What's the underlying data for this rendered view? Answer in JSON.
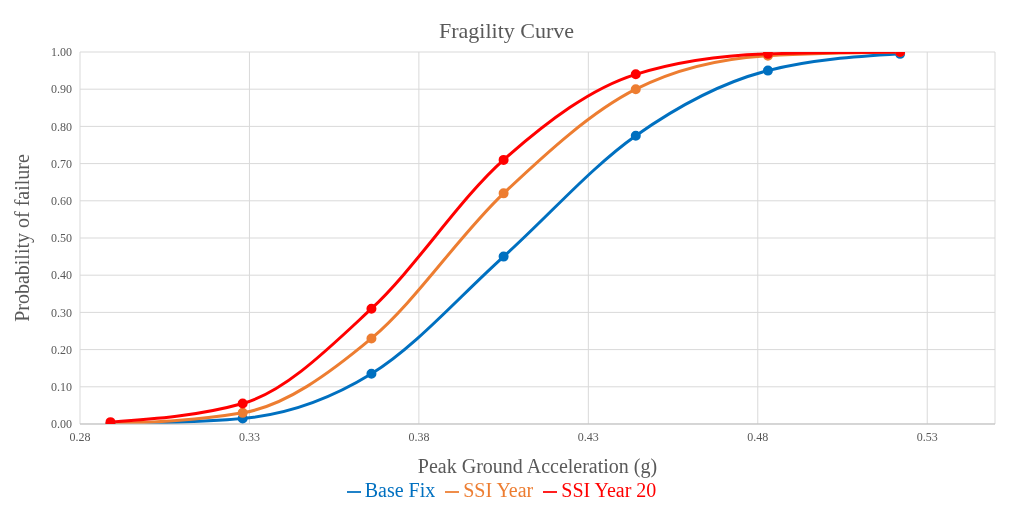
{
  "chart_data": {
    "type": "line",
    "title": "Fragility Curve",
    "xlabel": "Peak Ground Acceleration (g)",
    "ylabel": "Probability of failure",
    "x": [
      0.289,
      0.328,
      0.366,
      0.405,
      0.444,
      0.483,
      0.522
    ],
    "series": [
      {
        "name": "Base Fix",
        "color": "#0070c0",
        "values": [
          0.0,
          0.015,
          0.135,
          0.45,
          0.775,
          0.95,
          0.995
        ]
      },
      {
        "name": "SSI Year",
        "color": "#ed7d31",
        "values": [
          0.0,
          0.03,
          0.23,
          0.62,
          0.9,
          0.99,
          1.0
        ]
      },
      {
        "name": "SSI Year 20",
        "color": "#ff0000",
        "values": [
          0.005,
          0.055,
          0.31,
          0.71,
          0.94,
          0.995,
          1.0
        ]
      }
    ],
    "xlim": [
      0.28,
      0.55
    ],
    "xticks": [
      0.28,
      0.33,
      0.38,
      0.43,
      0.48,
      0.53
    ],
    "ylim": [
      0,
      1
    ],
    "yticks": [
      {
        "value": 0,
        "label": "0.00"
      },
      {
        "value": 0.1,
        "label": "0.10"
      },
      {
        "value": 0.2,
        "label": "0.20"
      },
      {
        "value": 0.3,
        "label": "0.30"
      },
      {
        "value": 0.4,
        "label": "0.40"
      },
      {
        "value": 0.5,
        "label": "0.50"
      },
      {
        "value": 0.6,
        "label": "0.60"
      },
      {
        "value": 0.7,
        "label": "0.70"
      },
      {
        "value": 0.8,
        "label": "0.80"
      },
      {
        "value": 0.9,
        "label": "0.90"
      },
      {
        "value": 1,
        "label": "1.00"
      }
    ],
    "grid": true,
    "legend": "bottom",
    "marker": "circle",
    "line_style": "solid"
  }
}
